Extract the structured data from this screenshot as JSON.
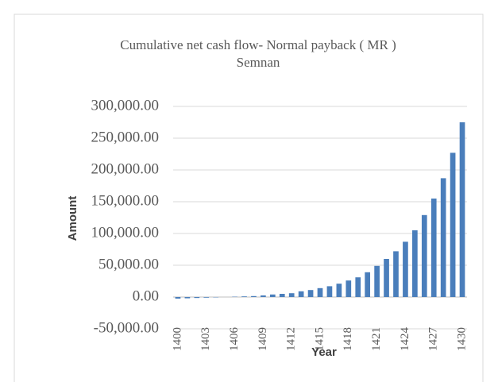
{
  "chart_data": {
    "type": "bar",
    "title": "Cumulative net cash flow- Normal payback ( MR )",
    "subtitle": "Semnan",
    "x_label": "Year",
    "y_label": "Amount",
    "categories": [
      "1400",
      null,
      null,
      "1403",
      null,
      null,
      "1406",
      null,
      null,
      "1409",
      null,
      null,
      "1412",
      null,
      null,
      "1415",
      null,
      null,
      "1418",
      null,
      null,
      "1421",
      null,
      null,
      "1424",
      null,
      null,
      "1427",
      null,
      null,
      "1430"
    ],
    "values": [
      -2500,
      -2000,
      -1500,
      -1000,
      -500,
      0,
      500,
      1000,
      1500,
      2500,
      4000,
      5000,
      6000,
      9000,
      11000,
      14000,
      17000,
      21000,
      26000,
      31000,
      39000,
      49000,
      60000,
      72000,
      87000,
      105000,
      129000,
      155000,
      187000,
      227000,
      275000
    ],
    "color": "#4a7ebb",
    "ylim": [
      -50000,
      300000
    ],
    "yticks": [
      {
        "value": -50000,
        "label": "-50,000.00"
      },
      {
        "value": 0,
        "label": "0.00"
      },
      {
        "value": 50000,
        "label": "50,000.00"
      },
      {
        "value": 100000,
        "label": "100,000.00"
      },
      {
        "value": 150000,
        "label": "150,000.00"
      },
      {
        "value": 200000,
        "label": "200,000.00"
      },
      {
        "value": 250000,
        "label": "250,000.00"
      },
      {
        "value": 300000,
        "label": "300,000.00"
      }
    ],
    "grid": true
  }
}
